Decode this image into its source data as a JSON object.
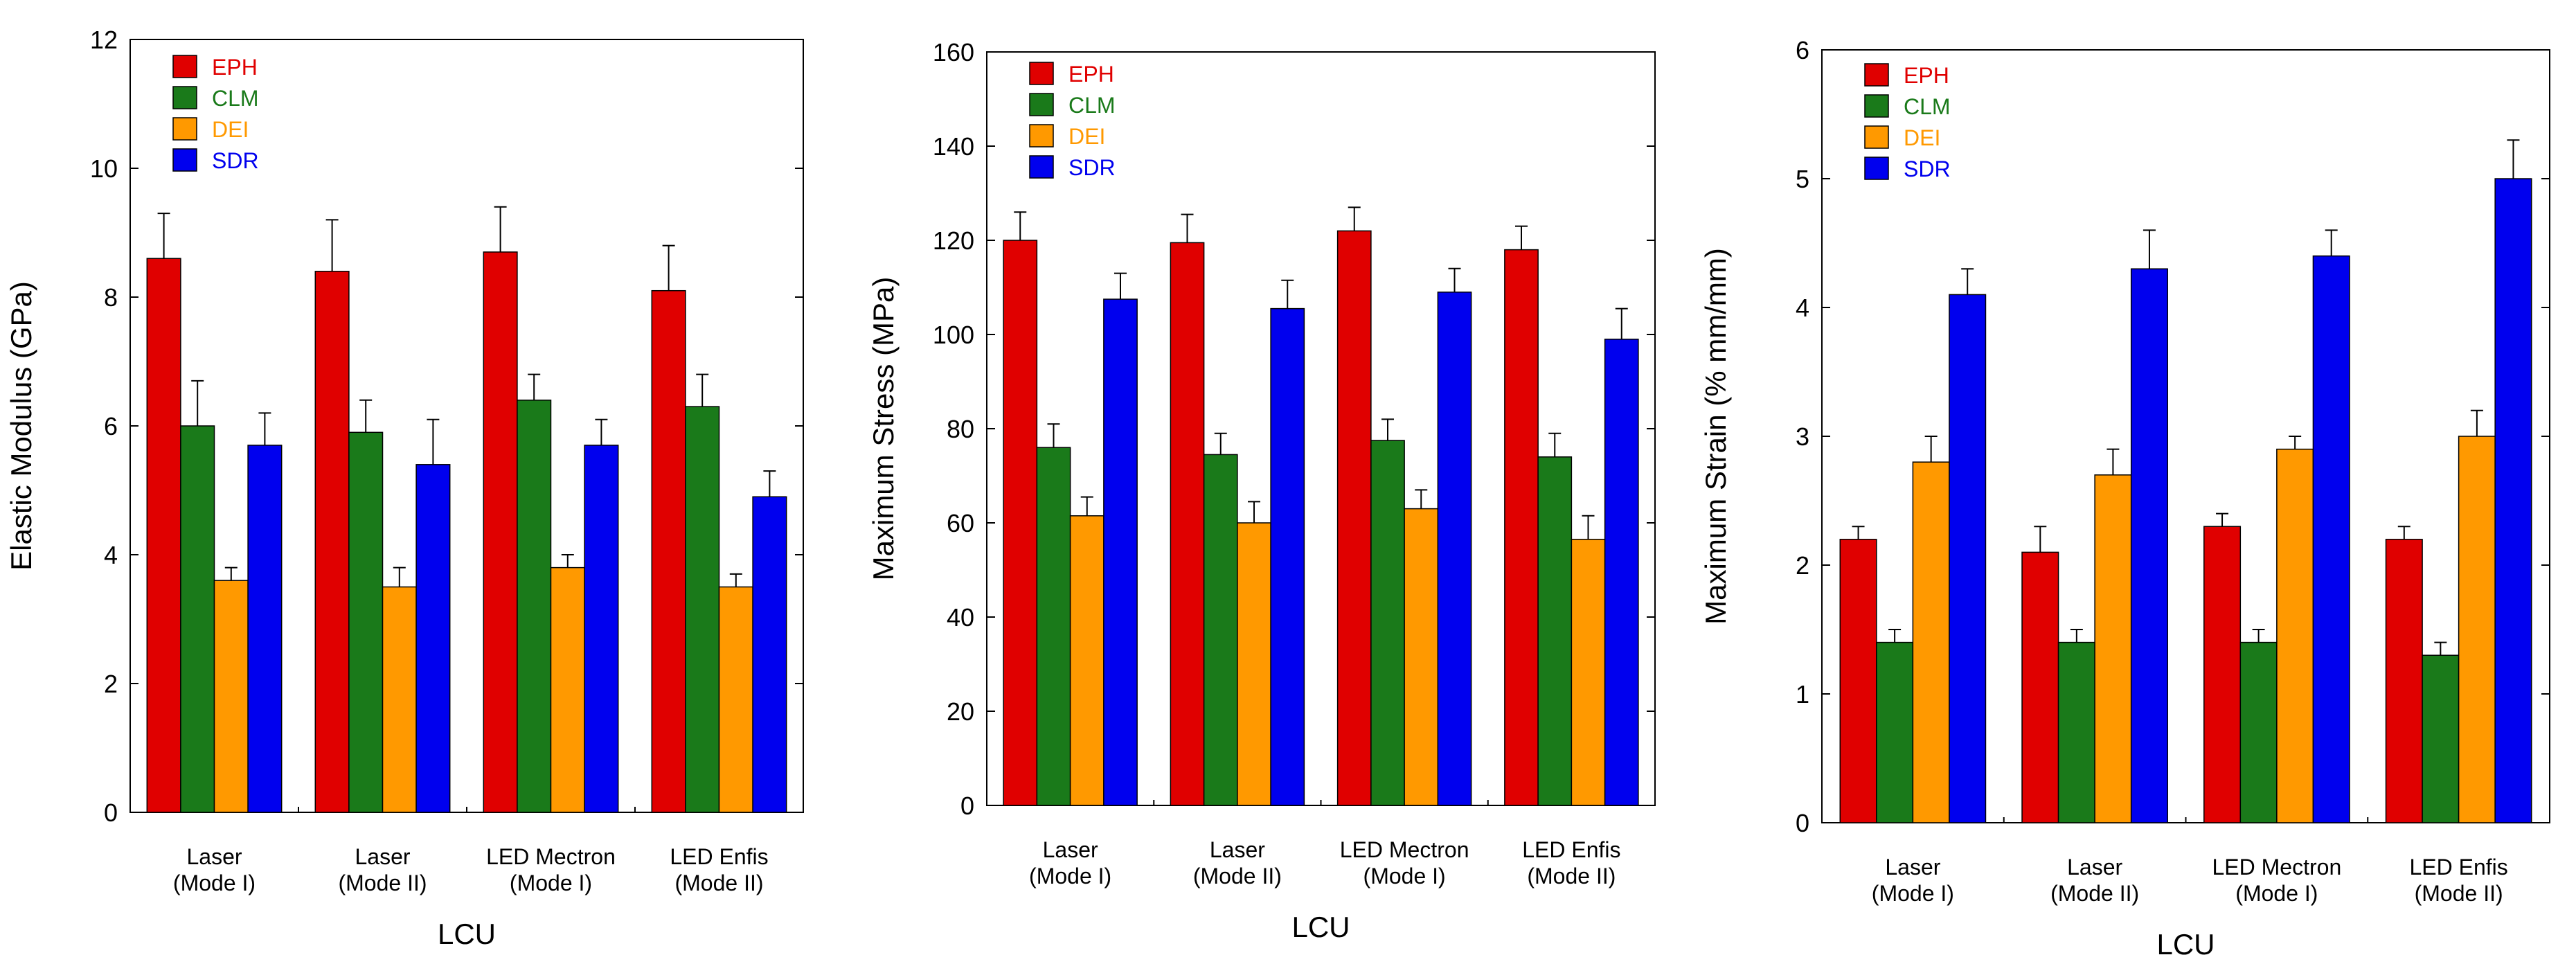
{
  "series_colors": {
    "EPH": "#e00000",
    "CLM": "#1a7a1a",
    "DEI": "#ff9900",
    "SDR": "#0000ee"
  },
  "chart_data": [
    {
      "type": "bar",
      "title": "",
      "xlabel": "LCU",
      "ylabel": "Elastic Modulus (GPa)",
      "ylim": [
        0,
        12
      ],
      "yticks": [
        0,
        2,
        4,
        6,
        8,
        10,
        12
      ],
      "ytick_labels": [
        "0",
        "2",
        "4",
        "6",
        "8",
        "10",
        "12"
      ],
      "categories": [
        [
          "Laser",
          "(Mode I)"
        ],
        [
          "Laser",
          "(Mode II)"
        ],
        [
          "LED Mectron",
          "(Mode I)"
        ],
        [
          "LED Enfis",
          "(Mode II)"
        ]
      ],
      "legend": {
        "position": "top-left",
        "labels": [
          "EPH",
          "CLM",
          "DEI",
          "SDR"
        ]
      },
      "series": [
        {
          "name": "EPH",
          "values": [
            8.6,
            8.4,
            8.7,
            8.1
          ],
          "errors": [
            0.7,
            0.8,
            0.7,
            0.7
          ]
        },
        {
          "name": "CLM",
          "values": [
            6.0,
            5.9,
            6.4,
            6.3
          ],
          "errors": [
            0.7,
            0.5,
            0.4,
            0.5
          ]
        },
        {
          "name": "DEI",
          "values": [
            3.6,
            3.5,
            3.8,
            3.5
          ],
          "errors": [
            0.2,
            0.3,
            0.2,
            0.2
          ]
        },
        {
          "name": "SDR",
          "values": [
            5.7,
            5.4,
            5.7,
            4.9
          ],
          "errors": [
            0.5,
            0.7,
            0.4,
            0.4
          ]
        }
      ]
    },
    {
      "type": "bar",
      "title": "",
      "xlabel": "LCU",
      "ylabel": "Maximum Stress (MPa)",
      "ylim": [
        0,
        160
      ],
      "yticks": [
        0,
        20,
        40,
        60,
        80,
        100,
        120,
        140,
        160
      ],
      "ytick_labels": [
        "0",
        "20",
        "40",
        "60",
        "80",
        "100",
        "120",
        "140",
        "160"
      ],
      "categories": [
        [
          "Laser",
          "(Mode I)"
        ],
        [
          "Laser",
          "(Mode II)"
        ],
        [
          "LED Mectron",
          "(Mode I)"
        ],
        [
          "LED Enfis",
          "(Mode II)"
        ]
      ],
      "legend": {
        "position": "top-left",
        "labels": [
          "EPH",
          "CLM",
          "DEI",
          "SDR"
        ]
      },
      "series": [
        {
          "name": "EPH",
          "values": [
            120,
            119.5,
            122,
            118
          ],
          "errors": [
            6,
            6,
            5,
            5
          ]
        },
        {
          "name": "CLM",
          "values": [
            76,
            74.5,
            77.5,
            74
          ],
          "errors": [
            5,
            4.5,
            4.5,
            5
          ]
        },
        {
          "name": "DEI",
          "values": [
            61.5,
            60,
            63,
            56.5
          ],
          "errors": [
            4,
            4.5,
            4,
            5
          ]
        },
        {
          "name": "SDR",
          "values": [
            107.5,
            105.5,
            109,
            99
          ],
          "errors": [
            5.5,
            6,
            5,
            6.5
          ]
        }
      ]
    },
    {
      "type": "bar",
      "title": "",
      "xlabel": "LCU",
      "ylabel": "Maximum Strain (% mm/mm)",
      "ylim": [
        0,
        6
      ],
      "yticks": [
        0,
        1,
        2,
        3,
        4,
        5,
        6
      ],
      "ytick_labels": [
        "0",
        "1",
        "2",
        "3",
        "4",
        "5",
        "6"
      ],
      "categories": [
        [
          "Laser",
          "(Mode I)"
        ],
        [
          "Laser",
          "(Mode II)"
        ],
        [
          "LED Mectron",
          "(Mode I)"
        ],
        [
          "LED Enfis",
          "(Mode II)"
        ]
      ],
      "legend": {
        "position": "top-left",
        "labels": [
          "EPH",
          "CLM",
          "DEI",
          "SDR"
        ]
      },
      "series": [
        {
          "name": "EPH",
          "values": [
            2.2,
            2.1,
            2.3,
            2.2
          ],
          "errors": [
            0.1,
            0.2,
            0.1,
            0.1
          ]
        },
        {
          "name": "CLM",
          "values": [
            1.4,
            1.4,
            1.4,
            1.3
          ],
          "errors": [
            0.1,
            0.1,
            0.1,
            0.1
          ]
        },
        {
          "name": "DEI",
          "values": [
            2.8,
            2.7,
            2.9,
            3.0
          ],
          "errors": [
            0.2,
            0.2,
            0.1,
            0.2
          ]
        },
        {
          "name": "SDR",
          "values": [
            4.1,
            4.3,
            4.4,
            5.0
          ],
          "errors": [
            0.2,
            0.3,
            0.2,
            0.3
          ]
        }
      ]
    }
  ]
}
